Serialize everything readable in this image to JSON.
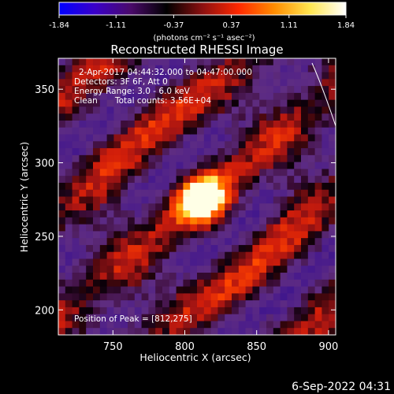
{
  "colorbar": {
    "min": -1.84,
    "max": 1.84,
    "tick_labels": [
      "-1.84",
      "-1.11",
      "-0.37",
      "0.37",
      "1.11",
      "1.84"
    ],
    "tick_values": [
      -1.84,
      -1.11,
      -0.37,
      0.37,
      1.11,
      1.84
    ],
    "unit_label": "(photons cm⁻² s⁻¹ asec⁻²)",
    "colors": [
      "#0000ff",
      "#3a00c8",
      "#4a0a6a",
      "#000000",
      "#8c1010",
      "#ff2800",
      "#ff8c00",
      "#ffe650",
      "#ffffff"
    ]
  },
  "chart_data": {
    "type": "heatmap",
    "title": "Reconstructed RHESSI Image",
    "xlabel": "Heliocentric X (arcsec)",
    "ylabel": "Heliocentric Y (arcsec)",
    "xlim": [
      712,
      905
    ],
    "ylim": [
      183,
      371
    ],
    "x_ticks": [
      750,
      800,
      850,
      900
    ],
    "y_ticks": [
      200,
      250,
      300,
      350
    ],
    "x_tick_labels": [
      "750",
      "800",
      "850",
      "900"
    ],
    "y_tick_labels": [
      "200",
      "250",
      "300",
      "350"
    ],
    "peak": [
      812,
      275
    ],
    "annotations": {
      "time_range": "2-Apr-2017 04:44:32.000 to 04:47:00.000",
      "detectors": "Detectors: 3F 6F, Att 0",
      "energy": "Energy Range: 3.0 - 6.0 keV",
      "method": "Clean",
      "counts": "Total counts: 3.56E+04",
      "peak_text": "Position of Peak = [812,275]"
    }
  },
  "footer": {
    "timestamp": "6-Sep-2022 04:31"
  }
}
